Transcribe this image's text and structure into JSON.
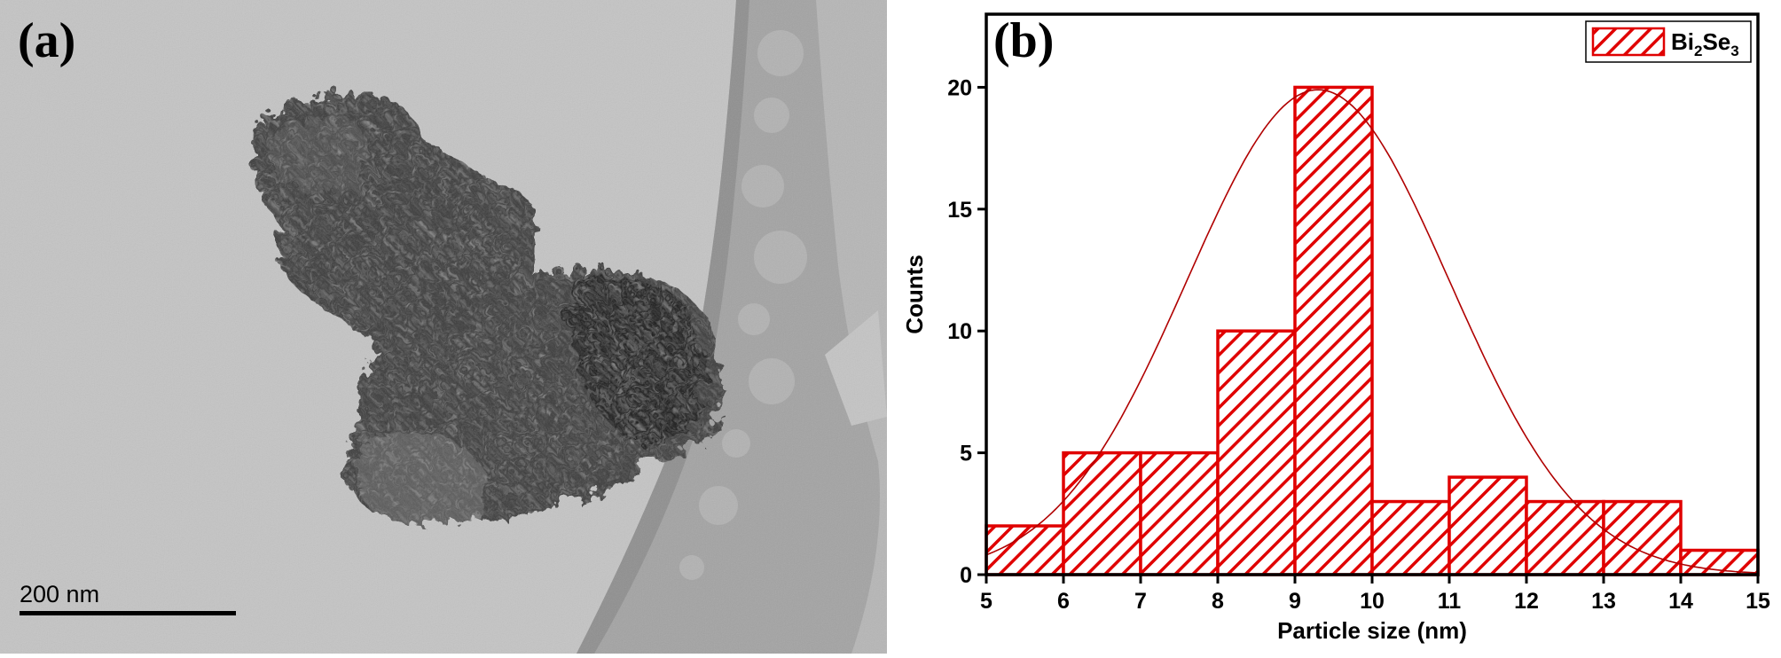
{
  "figure": {
    "panel_a": {
      "label": "(a)",
      "scale_bar_text": "200 nm",
      "image_colors": {
        "background": "#bebebe",
        "particle": "#2b2b2b",
        "grid": "#9a9a9a"
      }
    },
    "panel_b": {
      "label": "(b)"
    }
  },
  "chart_data": {
    "type": "bar",
    "title": "",
    "xlabel": "Particle size (nm)",
    "ylabel": "Counts",
    "xlim": [
      5,
      15
    ],
    "ylim": [
      0,
      23
    ],
    "xticks": [
      5,
      6,
      7,
      8,
      9,
      10,
      11,
      12,
      13,
      14,
      15
    ],
    "yticks": [
      0,
      5,
      10,
      15,
      20
    ],
    "bins": [
      {
        "from": 5,
        "to": 6,
        "count": 2
      },
      {
        "from": 6,
        "to": 7,
        "count": 5
      },
      {
        "from": 7,
        "to": 8,
        "count": 5
      },
      {
        "from": 8,
        "to": 9,
        "count": 10
      },
      {
        "from": 9,
        "to": 10,
        "count": 20
      },
      {
        "from": 10,
        "to": 11,
        "count": 3
      },
      {
        "from": 11,
        "to": 12,
        "count": 4
      },
      {
        "from": 12,
        "to": 13,
        "count": 3
      },
      {
        "from": 13,
        "to": 14,
        "count": 3
      },
      {
        "from": 14,
        "to": 15,
        "count": 1
      }
    ],
    "fit": {
      "type": "gaussian",
      "center": 9.3,
      "sigma": 1.7,
      "peak": 19.9
    },
    "series": [
      {
        "name_base": "Bi",
        "name_sub1": "2",
        "name_mid": "Se",
        "name_sub2": "3"
      }
    ],
    "legend_position": "top-right",
    "grid": false,
    "colors": {
      "bar": "#e00000",
      "fit": "#b00000",
      "axis": "#000000"
    }
  }
}
